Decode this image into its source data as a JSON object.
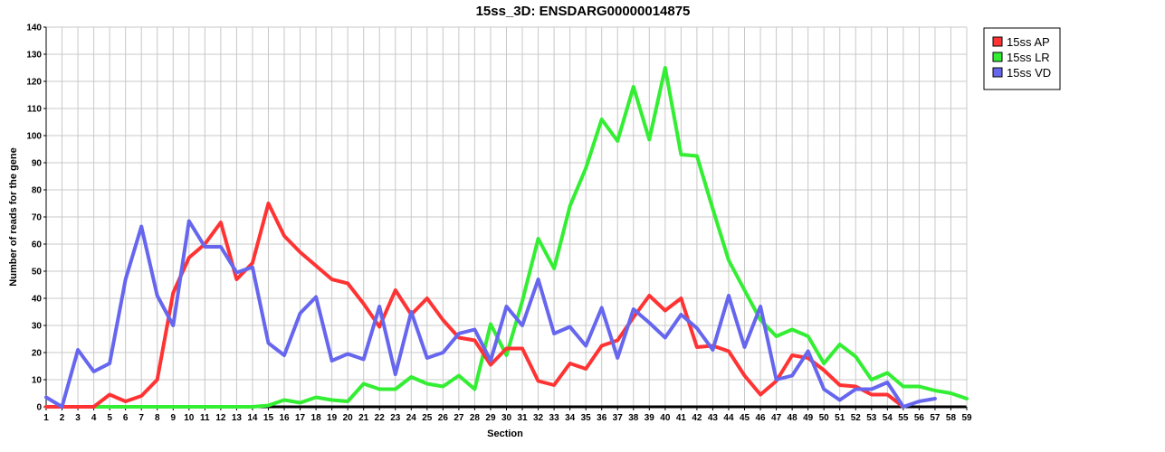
{
  "chart_data": {
    "type": "line",
    "title": "15ss_3D: ENSDARG00000014875",
    "xlabel": "Section",
    "ylabel": "Number of reads for the gene",
    "xlim": [
      1,
      59
    ],
    "ylim": [
      0,
      140
    ],
    "ytick_step": 10,
    "grid": true,
    "legend_position": "top-right",
    "x": [
      1,
      2,
      3,
      4,
      5,
      6,
      7,
      8,
      9,
      10,
      11,
      12,
      13,
      14,
      15,
      16,
      17,
      18,
      19,
      20,
      21,
      22,
      23,
      24,
      25,
      26,
      27,
      28,
      29,
      30,
      31,
      32,
      33,
      34,
      35,
      36,
      37,
      38,
      39,
      40,
      41,
      42,
      43,
      44,
      45,
      46,
      47,
      48,
      49,
      50,
      51,
      52,
      53,
      54,
      55,
      56,
      57,
      58,
      59
    ],
    "series": [
      {
        "name": "15ss AP",
        "color": "#ff3333",
        "values": [
          0,
          0,
          0,
          0,
          4.5,
          2,
          4,
          10,
          42,
          55,
          60,
          68,
          47,
          53,
          75,
          63,
          57,
          52,
          47,
          45.5,
          38,
          29.5,
          43,
          34,
          40,
          32,
          25.5,
          24.5,
          15.5,
          21.5,
          21.5,
          9.5,
          8,
          16,
          14,
          22.5,
          24.5,
          33,
          41,
          35.5,
          40,
          22,
          22.5,
          20.5,
          11.5,
          4.5,
          9.5,
          19,
          18,
          13.5,
          8,
          7.5,
          4.5,
          4.5,
          0,
          null,
          null,
          null,
          null
        ]
      },
      {
        "name": "15ss LR",
        "color": "#33ee33",
        "values": [
          0,
          0,
          0,
          0,
          0,
          0,
          0,
          0,
          0,
          0,
          0,
          0,
          0,
          0,
          0.5,
          2.5,
          1.5,
          3.5,
          2.5,
          2,
          8.5,
          6.5,
          6.5,
          11,
          8.5,
          7.5,
          11.5,
          6.5,
          30.5,
          19,
          39,
          62,
          51,
          74,
          88,
          106,
          98,
          118,
          98.5,
          125,
          93,
          92.5,
          73,
          54,
          43,
          32,
          26,
          28.5,
          26,
          16,
          23,
          18.5,
          10,
          12.5,
          7.5,
          7.5,
          6,
          5,
          3
        ]
      },
      {
        "name": "15ss VD",
        "color": "#6666ee",
        "values": [
          3.5,
          0,
          21,
          13,
          16,
          47,
          66.5,
          41,
          30,
          68.5,
          59,
          59,
          49.5,
          51.5,
          23.5,
          19,
          34.5,
          40.5,
          17,
          19.5,
          17.5,
          37,
          12,
          35,
          18,
          20,
          27,
          28.5,
          17,
          37,
          30,
          47,
          27,
          29.5,
          22.5,
          36.5,
          18,
          36,
          31,
          25.5,
          34,
          29,
          21,
          41,
          22,
          37,
          10,
          11.5,
          20.5,
          6.5,
          2.5,
          6.5,
          6.5,
          9,
          0,
          2,
          3,
          null,
          null
        ]
      }
    ]
  }
}
